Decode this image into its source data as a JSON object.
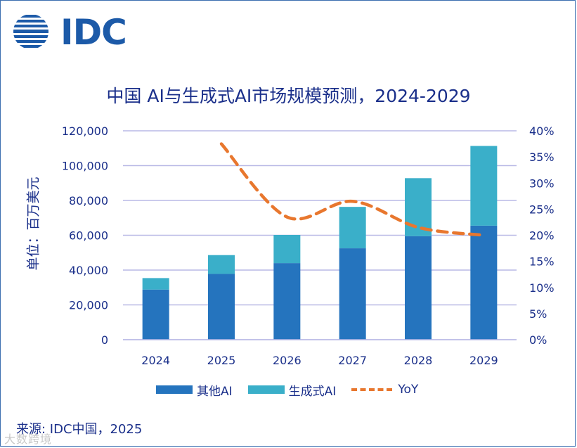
{
  "logo": {
    "text": "IDC"
  },
  "source": "来源: IDC中国，2025",
  "watermark": "大数跨境",
  "colors": {
    "other_ai": "#2574be",
    "gen_ai": "#3aafc9",
    "yoy": "#e8772e",
    "grid": "#b9b9e6",
    "text": "#1a2f8a"
  },
  "chart_data": {
    "type": "bar",
    "stacked": true,
    "title": "中国 AI与生成式AI市场规模预测，2024-2029",
    "ylabel": "单位：百万美元",
    "categories": [
      "2024",
      "2025",
      "2026",
      "2027",
      "2028",
      "2029"
    ],
    "ylim": [
      0,
      120000
    ],
    "y_ticks": [
      "0",
      "20,000",
      "40,000",
      "60,000",
      "80,000",
      "100,000",
      "120,000"
    ],
    "y_tick_values": [
      0,
      20000,
      40000,
      60000,
      80000,
      100000,
      120000
    ],
    "y2lim": [
      0,
      40
    ],
    "y2_ticks": [
      "0%",
      "5%",
      "10%",
      "15%",
      "20%",
      "25%",
      "30%",
      "35%",
      "40%"
    ],
    "y2_tick_values": [
      0,
      5,
      10,
      15,
      20,
      25,
      30,
      35,
      40
    ],
    "series": [
      {
        "name": "其他AI",
        "type": "bar",
        "values": [
          28800,
          37800,
          44000,
          52500,
          59500,
          65500
        ]
      },
      {
        "name": "生成式AI",
        "type": "bar",
        "values": [
          6600,
          10800,
          16200,
          23800,
          33300,
          45800
        ]
      },
      {
        "name": "YoY",
        "type": "line",
        "axis": "right",
        "style": "dashed",
        "values": [
          null,
          37.5,
          23.5,
          26.5,
          21.5,
          20.0
        ]
      }
    ],
    "grid": true,
    "legend": "bottom"
  }
}
